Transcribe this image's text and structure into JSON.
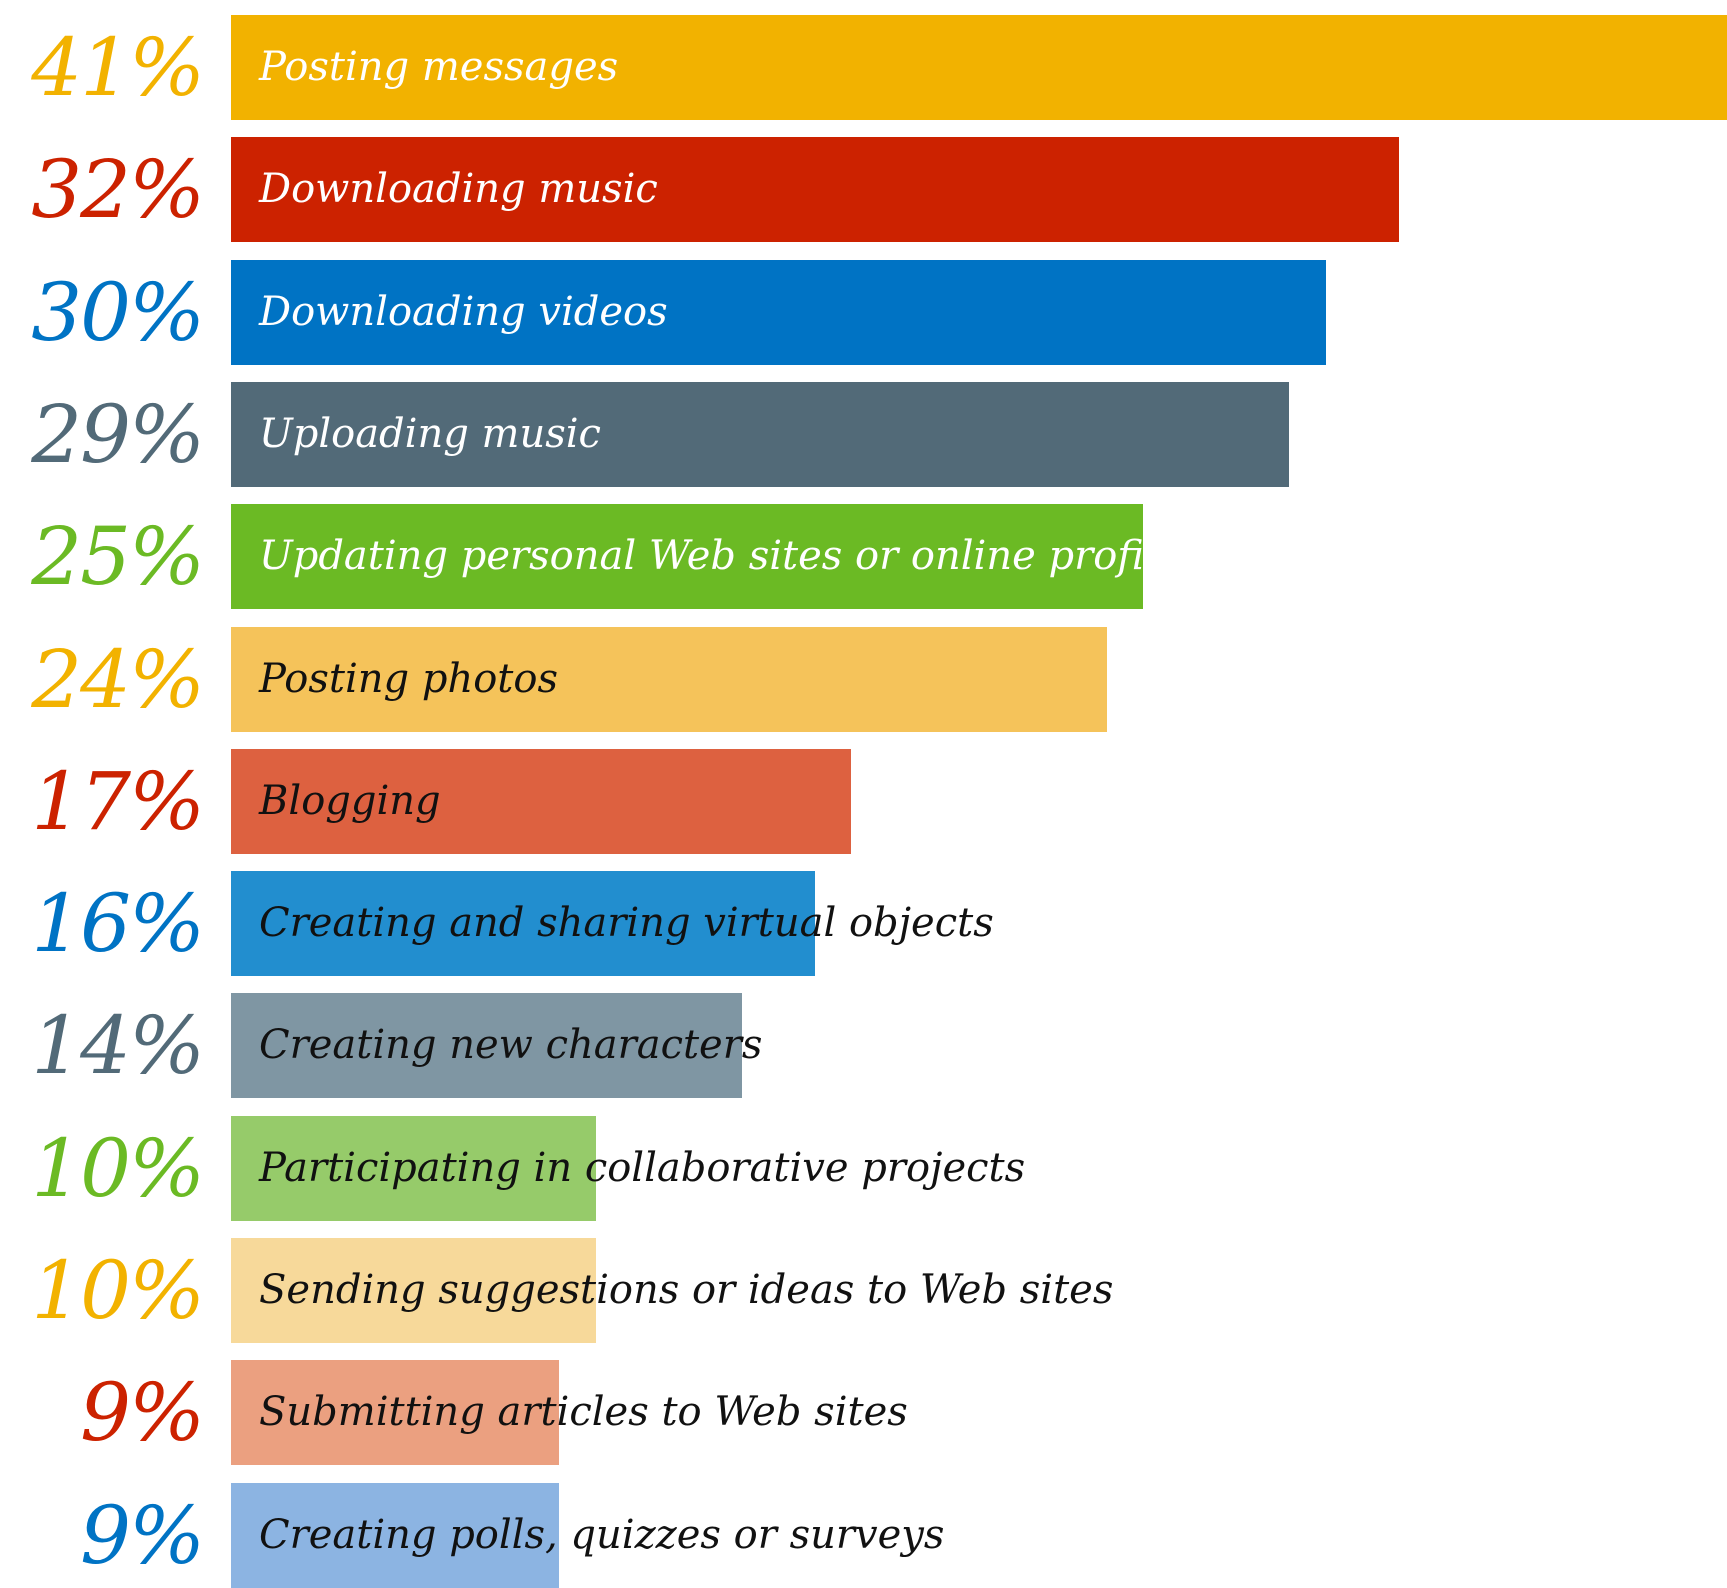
{
  "chart_data": {
    "type": "bar",
    "orientation": "horizontal",
    "xlim": [
      0,
      41
    ],
    "grid": false,
    "categories": [
      "Posting messages",
      "Downloading music",
      "Downloading videos",
      "Uploading music",
      "Updating personal Web sites or online profiles",
      "Posting photos",
      "Blogging",
      "Creating and sharing virtual objects",
      "Creating new characters",
      "Participating in collaborative projects",
      "Sending suggestions or ideas to Web sites",
      "Submitting articles to Web sites",
      "Creating polls, quizzes or surveys"
    ],
    "values": [
      41,
      32,
      30,
      29,
      25,
      24,
      17,
      16,
      14,
      10,
      10,
      9,
      9
    ],
    "value_labels": [
      "41%",
      "32%",
      "30%",
      "29%",
      "25%",
      "24%",
      "17%",
      "16%",
      "14%",
      "10%",
      "10%",
      "9%",
      "9%"
    ],
    "bar_colors": [
      "#F2B200",
      "#CC2200",
      "#0073C4",
      "#526A78",
      "#6BBA24",
      "#F5C35A",
      "#DD6140",
      "#228ECF",
      "#7F96A3",
      "#96CB6A",
      "#F7D99A",
      "#EBA080",
      "#8CB4E2"
    ],
    "value_label_colors": [
      "#F2B200",
      "#CC2200",
      "#0073C4",
      "#526A78",
      "#6BBA24",
      "#F2B200",
      "#CC2200",
      "#0073C4",
      "#526A78",
      "#6BBA24",
      "#F2B200",
      "#CC2200",
      "#0073C4"
    ],
    "category_label_colors": [
      "#ffffff",
      "#ffffff",
      "#ffffff",
      "#ffffff",
      "#ffffff",
      "#111111",
      "#111111",
      "#111111",
      "#111111",
      "#111111",
      "#111111",
      "#111111",
      "#111111"
    ]
  }
}
